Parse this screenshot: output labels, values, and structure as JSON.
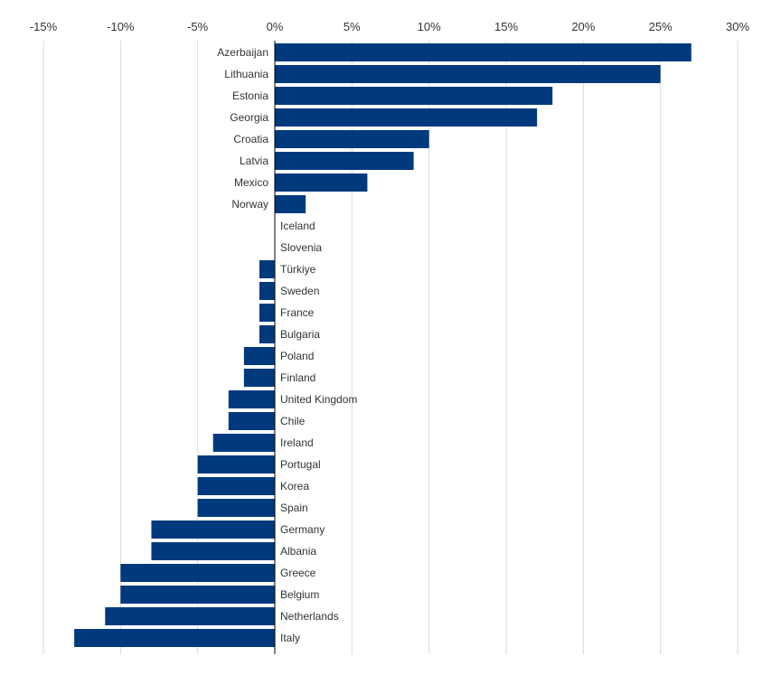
{
  "colors": {
    "bar": "#003a7d",
    "grid": "#d9d9d9",
    "axis": "#000000",
    "text": "#333333",
    "background": "#ffffff"
  },
  "chart_data": {
    "type": "bar",
    "orientation": "horizontal",
    "title": "",
    "xlabel": "",
    "ylabel": "",
    "xlim": [
      -15,
      30
    ],
    "x_ticks": [
      -15,
      -10,
      -5,
      0,
      5,
      10,
      15,
      20,
      25,
      30
    ],
    "x_tick_labels": [
      "-15%",
      "-10%",
      "-5%",
      "0%",
      "5%",
      "10%",
      "15%",
      "20%",
      "25%",
      "30%"
    ],
    "tick_position": "top",
    "grid": true,
    "legend": "none",
    "unit": "%",
    "categories": [
      "Azerbaijan",
      "Lithuania",
      "Estonia",
      "Georgia",
      "Croatia",
      "Latvia",
      "Mexico",
      "Norway",
      "Iceland",
      "Slovenia",
      "Türkiye",
      "Sweden",
      "France",
      "Bulgaria",
      "Poland",
      "Finland",
      "United Kingdom",
      "Chile",
      "Ireland",
      "Portugal",
      "Korea",
      "Spain",
      "Germany",
      "Albania",
      "Greece",
      "Belgium",
      "Netherlands",
      "Italy"
    ],
    "values": [
      27,
      25,
      18,
      17,
      10,
      9,
      6,
      2,
      0,
      0,
      -1,
      -1,
      -1,
      -1,
      -2,
      -2,
      -3,
      -3,
      -4,
      -5,
      -5,
      -5,
      -8,
      -8,
      -10,
      -10,
      -11,
      -13
    ]
  }
}
